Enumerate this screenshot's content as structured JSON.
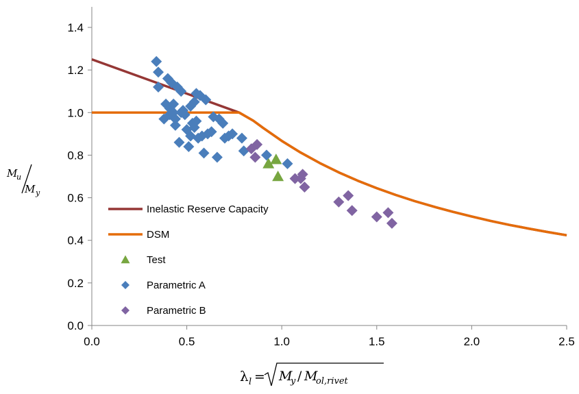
{
  "chart_data": {
    "type": "scatter",
    "title": "",
    "xlim": [
      0,
      2.5
    ],
    "ylim": [
      0,
      1.4
    ],
    "x_ticks": [
      "0.0",
      "0.5",
      "1.0",
      "1.5",
      "2.0",
      "2.5"
    ],
    "y_ticks": [
      "0.0",
      "0.2",
      "0.4",
      "0.6",
      "0.8",
      "1.0",
      "1.2",
      "1.4"
    ],
    "x_tick_values": [
      0,
      0.5,
      1.0,
      1.5,
      2.0,
      2.5
    ],
    "y_tick_values": [
      0,
      0.2,
      0.4,
      0.6,
      0.8,
      1.0,
      1.2,
      1.4
    ],
    "xlabel": {
      "lambda": "λ",
      "lambda_sub": "l",
      "eq": "=",
      "M1": "M",
      "M1_sub": "y",
      "slash": "/",
      "M2": "M",
      "M2_sub": "ol,rivet"
    },
    "ylabel": {
      "num": "M",
      "num_sub": "u",
      "den": "M",
      "den_sub": "y"
    },
    "grid": false,
    "legend_position": "left-lower",
    "series": [
      {
        "name": "Inelastic Reserve Capacity",
        "kind": "line",
        "color": "#953735",
        "x": [
          0,
          0.776,
          0.85,
          0.9,
          1.0,
          1.1,
          1.2,
          1.3,
          1.4,
          1.5,
          1.6,
          1.7,
          1.8,
          1.9,
          2.0,
          2.1,
          2.2,
          2.3,
          2.4,
          2.5
        ],
        "y": [
          1.25,
          1.0,
          0.962,
          0.929,
          0.867,
          0.812,
          0.763,
          0.719,
          0.68,
          0.645,
          0.613,
          0.584,
          0.558,
          0.534,
          0.512,
          0.491,
          0.472,
          0.455,
          0.439,
          0.424
        ]
      },
      {
        "name": "DSM",
        "kind": "line",
        "color": "#E46C0A",
        "x": [
          0,
          0.776,
          0.85,
          0.9,
          1.0,
          1.1,
          1.2,
          1.3,
          1.4,
          1.5,
          1.6,
          1.7,
          1.8,
          1.9,
          2.0,
          2.1,
          2.2,
          2.3,
          2.4,
          2.5
        ],
        "y": [
          1.0,
          1.0,
          0.962,
          0.929,
          0.867,
          0.812,
          0.763,
          0.719,
          0.68,
          0.645,
          0.613,
          0.584,
          0.558,
          0.534,
          0.512,
          0.491,
          0.472,
          0.455,
          0.439,
          0.424
        ]
      },
      {
        "name": "Test",
        "kind": "triangle",
        "color": "#77A640",
        "x": [
          0.93,
          0.97,
          0.98
        ],
        "y": [
          0.76,
          0.78,
          0.7
        ]
      },
      {
        "name": "Parametric A",
        "kind": "diamond",
        "color": "#4A7EBB",
        "x": [
          0.34,
          0.35,
          0.35,
          0.38,
          0.39,
          0.4,
          0.41,
          0.41,
          0.42,
          0.43,
          0.43,
          0.44,
          0.44,
          0.45,
          0.46,
          0.47,
          0.47,
          0.48,
          0.49,
          0.5,
          0.51,
          0.52,
          0.52,
          0.53,
          0.54,
          0.54,
          0.55,
          0.55,
          0.56,
          0.57,
          0.58,
          0.59,
          0.6,
          0.61,
          0.63,
          0.64,
          0.66,
          0.67,
          0.69,
          0.7,
          0.72,
          0.74,
          0.79,
          0.8,
          0.92,
          1.03
        ],
        "y": [
          1.24,
          1.19,
          1.12,
          0.97,
          1.04,
          1.16,
          1.02,
          0.99,
          1.14,
          1.04,
          1.0,
          0.94,
          0.97,
          1.12,
          0.86,
          1.1,
          1.0,
          1.01,
          0.99,
          0.92,
          0.84,
          0.89,
          1.03,
          0.95,
          0.93,
          1.05,
          0.96,
          1.09,
          0.88,
          1.08,
          0.89,
          0.81,
          1.06,
          0.9,
          0.91,
          0.98,
          0.79,
          0.97,
          0.95,
          0.88,
          0.89,
          0.9,
          0.88,
          0.82,
          0.8,
          0.76
        ]
      },
      {
        "name": "Parametric B",
        "kind": "diamond",
        "color": "#8064A2",
        "x": [
          0.84,
          0.86,
          0.87,
          1.07,
          1.1,
          1.11,
          1.12,
          1.3,
          1.35,
          1.37,
          1.5,
          1.56,
          1.58
        ],
        "y": [
          0.83,
          0.79,
          0.85,
          0.69,
          0.69,
          0.71,
          0.65,
          0.58,
          0.61,
          0.54,
          0.51,
          0.53,
          0.48
        ]
      }
    ]
  }
}
